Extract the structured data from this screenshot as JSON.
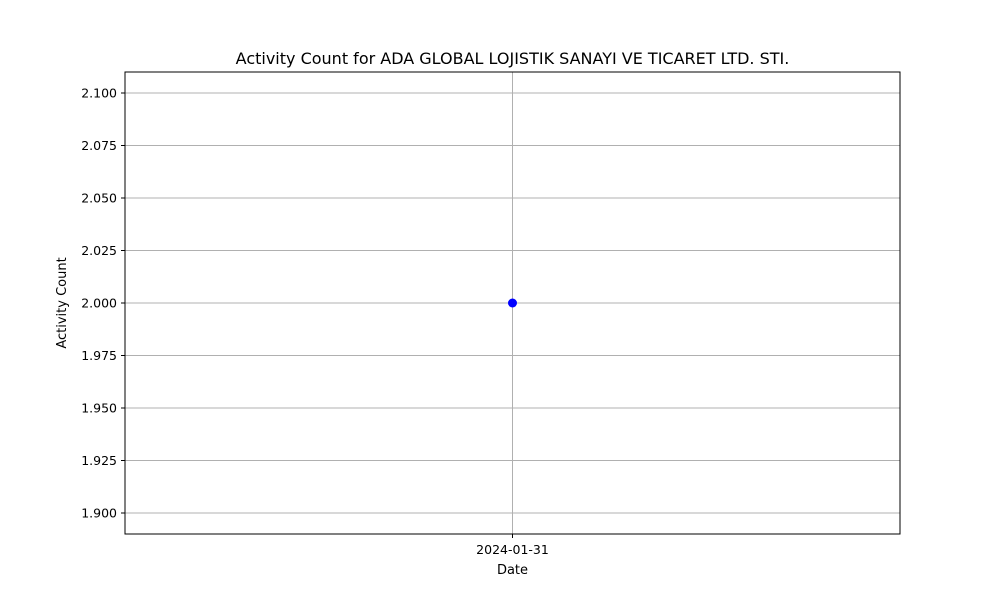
{
  "chart_data": {
    "type": "scatter",
    "title": "Activity Count for ADA GLOBAL LOJISTIK SANAYI VE TICARET LTD. STI.",
    "xlabel": "Date",
    "ylabel": "Activity Count",
    "x": [
      "2024-01-31"
    ],
    "series": [
      {
        "values": [
          2.0
        ],
        "color": "#0000ff"
      }
    ],
    "ylim": [
      1.89,
      2.11
    ],
    "yticks": [
      "1.900",
      "1.925",
      "1.950",
      "1.975",
      "2.000",
      "2.025",
      "2.050",
      "2.075",
      "2.100"
    ],
    "xticks": [
      "2024-01-31"
    ],
    "grid": true,
    "legend": "none",
    "colors": {
      "marker": "#0000ff",
      "grid": "#b0b0b0",
      "axes": "#000000"
    }
  }
}
